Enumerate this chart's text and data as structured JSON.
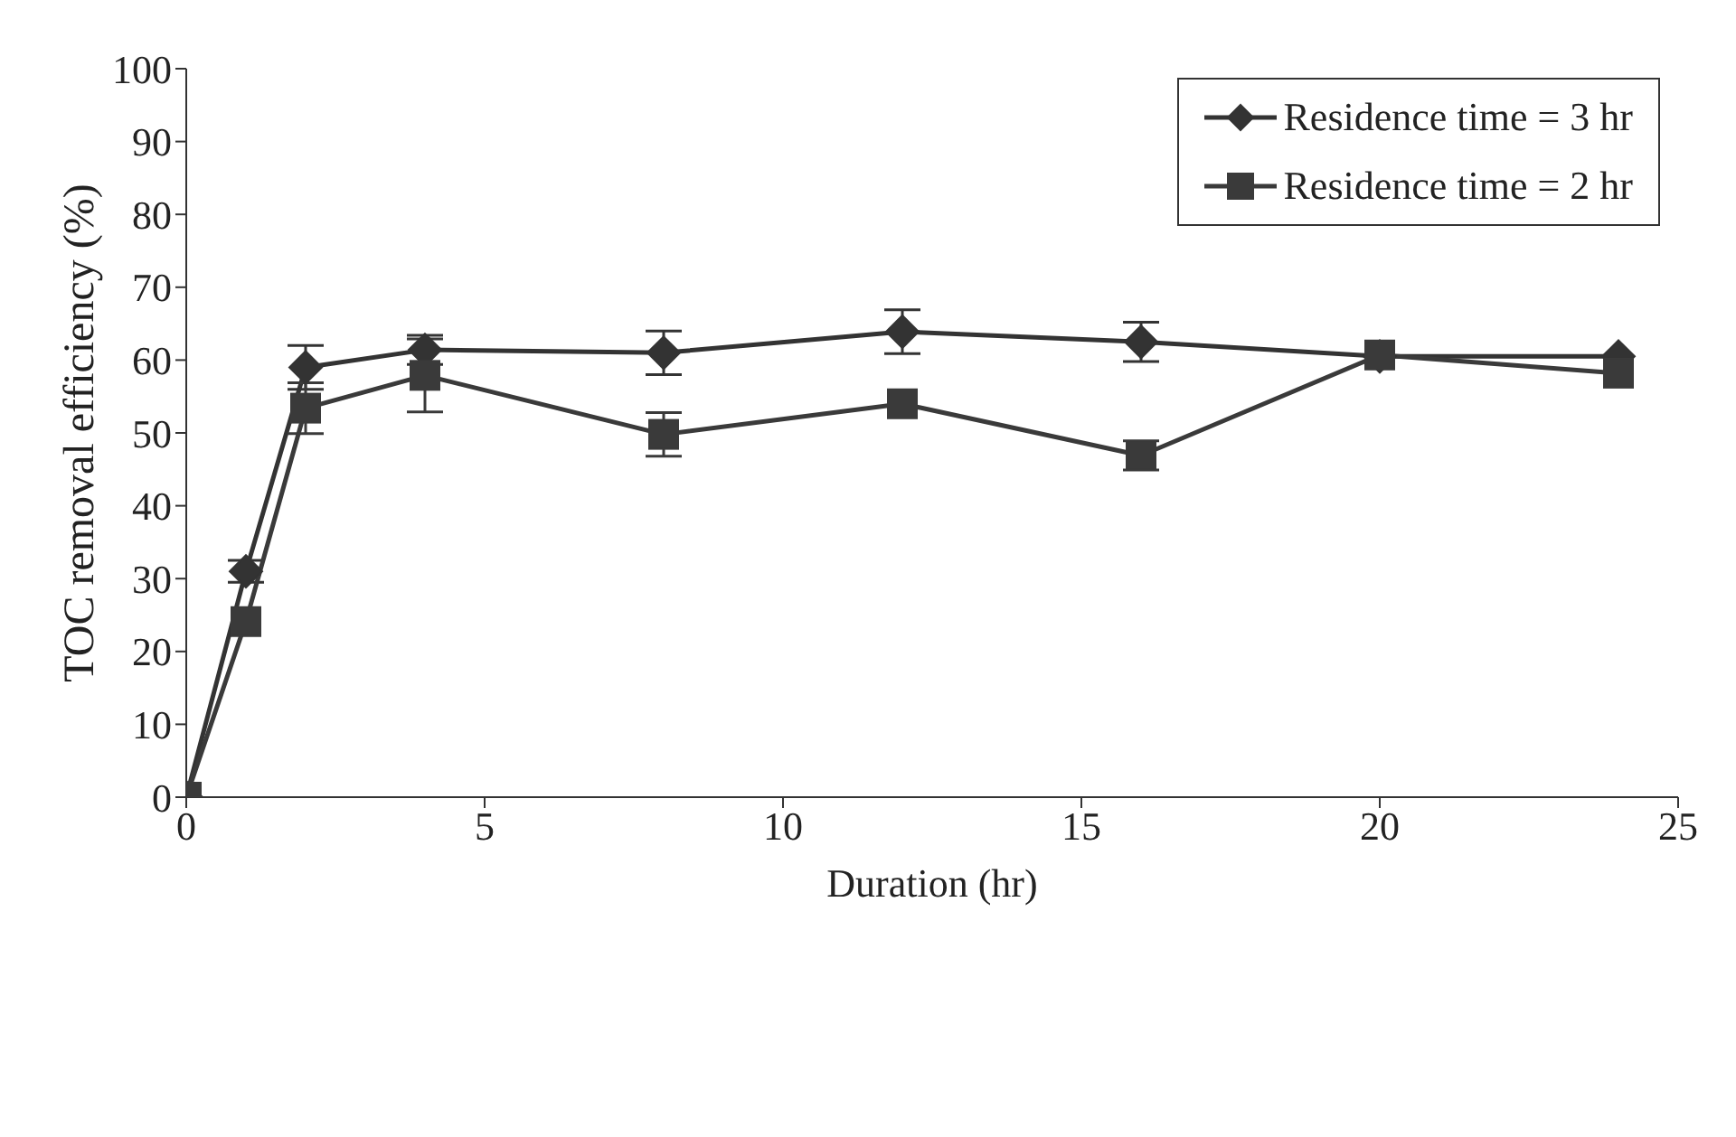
{
  "chart_data": {
    "type": "line",
    "xlabel": "Duration (hr)",
    "ylabel": "TOC removal efficiency (%)",
    "xlim": [
      0,
      25
    ],
    "xticks": [
      0,
      5,
      10,
      15,
      20,
      25
    ],
    "ylim": [
      0,
      100
    ],
    "yticks": [
      0,
      10,
      20,
      30,
      40,
      50,
      60,
      70,
      80,
      90,
      100
    ],
    "grid": false,
    "legend": "top right",
    "line_style": "solid",
    "series": [
      {
        "name": "Residence time = 3 hr",
        "color": "#333333",
        "marker": "diamond",
        "x": [
          0,
          1,
          2,
          4,
          8,
          12,
          16,
          20,
          24
        ],
        "values": [
          0,
          31,
          59,
          61.4,
          61,
          63.9,
          62.5,
          60.5,
          60.5
        ],
        "errors": [
          null,
          1.5,
          3,
          2,
          3,
          3,
          2.7,
          null,
          null
        ]
      },
      {
        "name": "Residence time = 2 hr",
        "color": "#3a3a3a",
        "marker": "square",
        "x": [
          0,
          1,
          2,
          4,
          8,
          12,
          16,
          20,
          24
        ],
        "values": [
          0,
          24.1,
          53.4,
          57.9,
          49.8,
          54,
          46.9,
          60.7,
          58.2
        ],
        "errors": [
          null,
          null,
          3.5,
          5,
          3,
          null,
          2,
          null,
          null
        ]
      }
    ]
  }
}
